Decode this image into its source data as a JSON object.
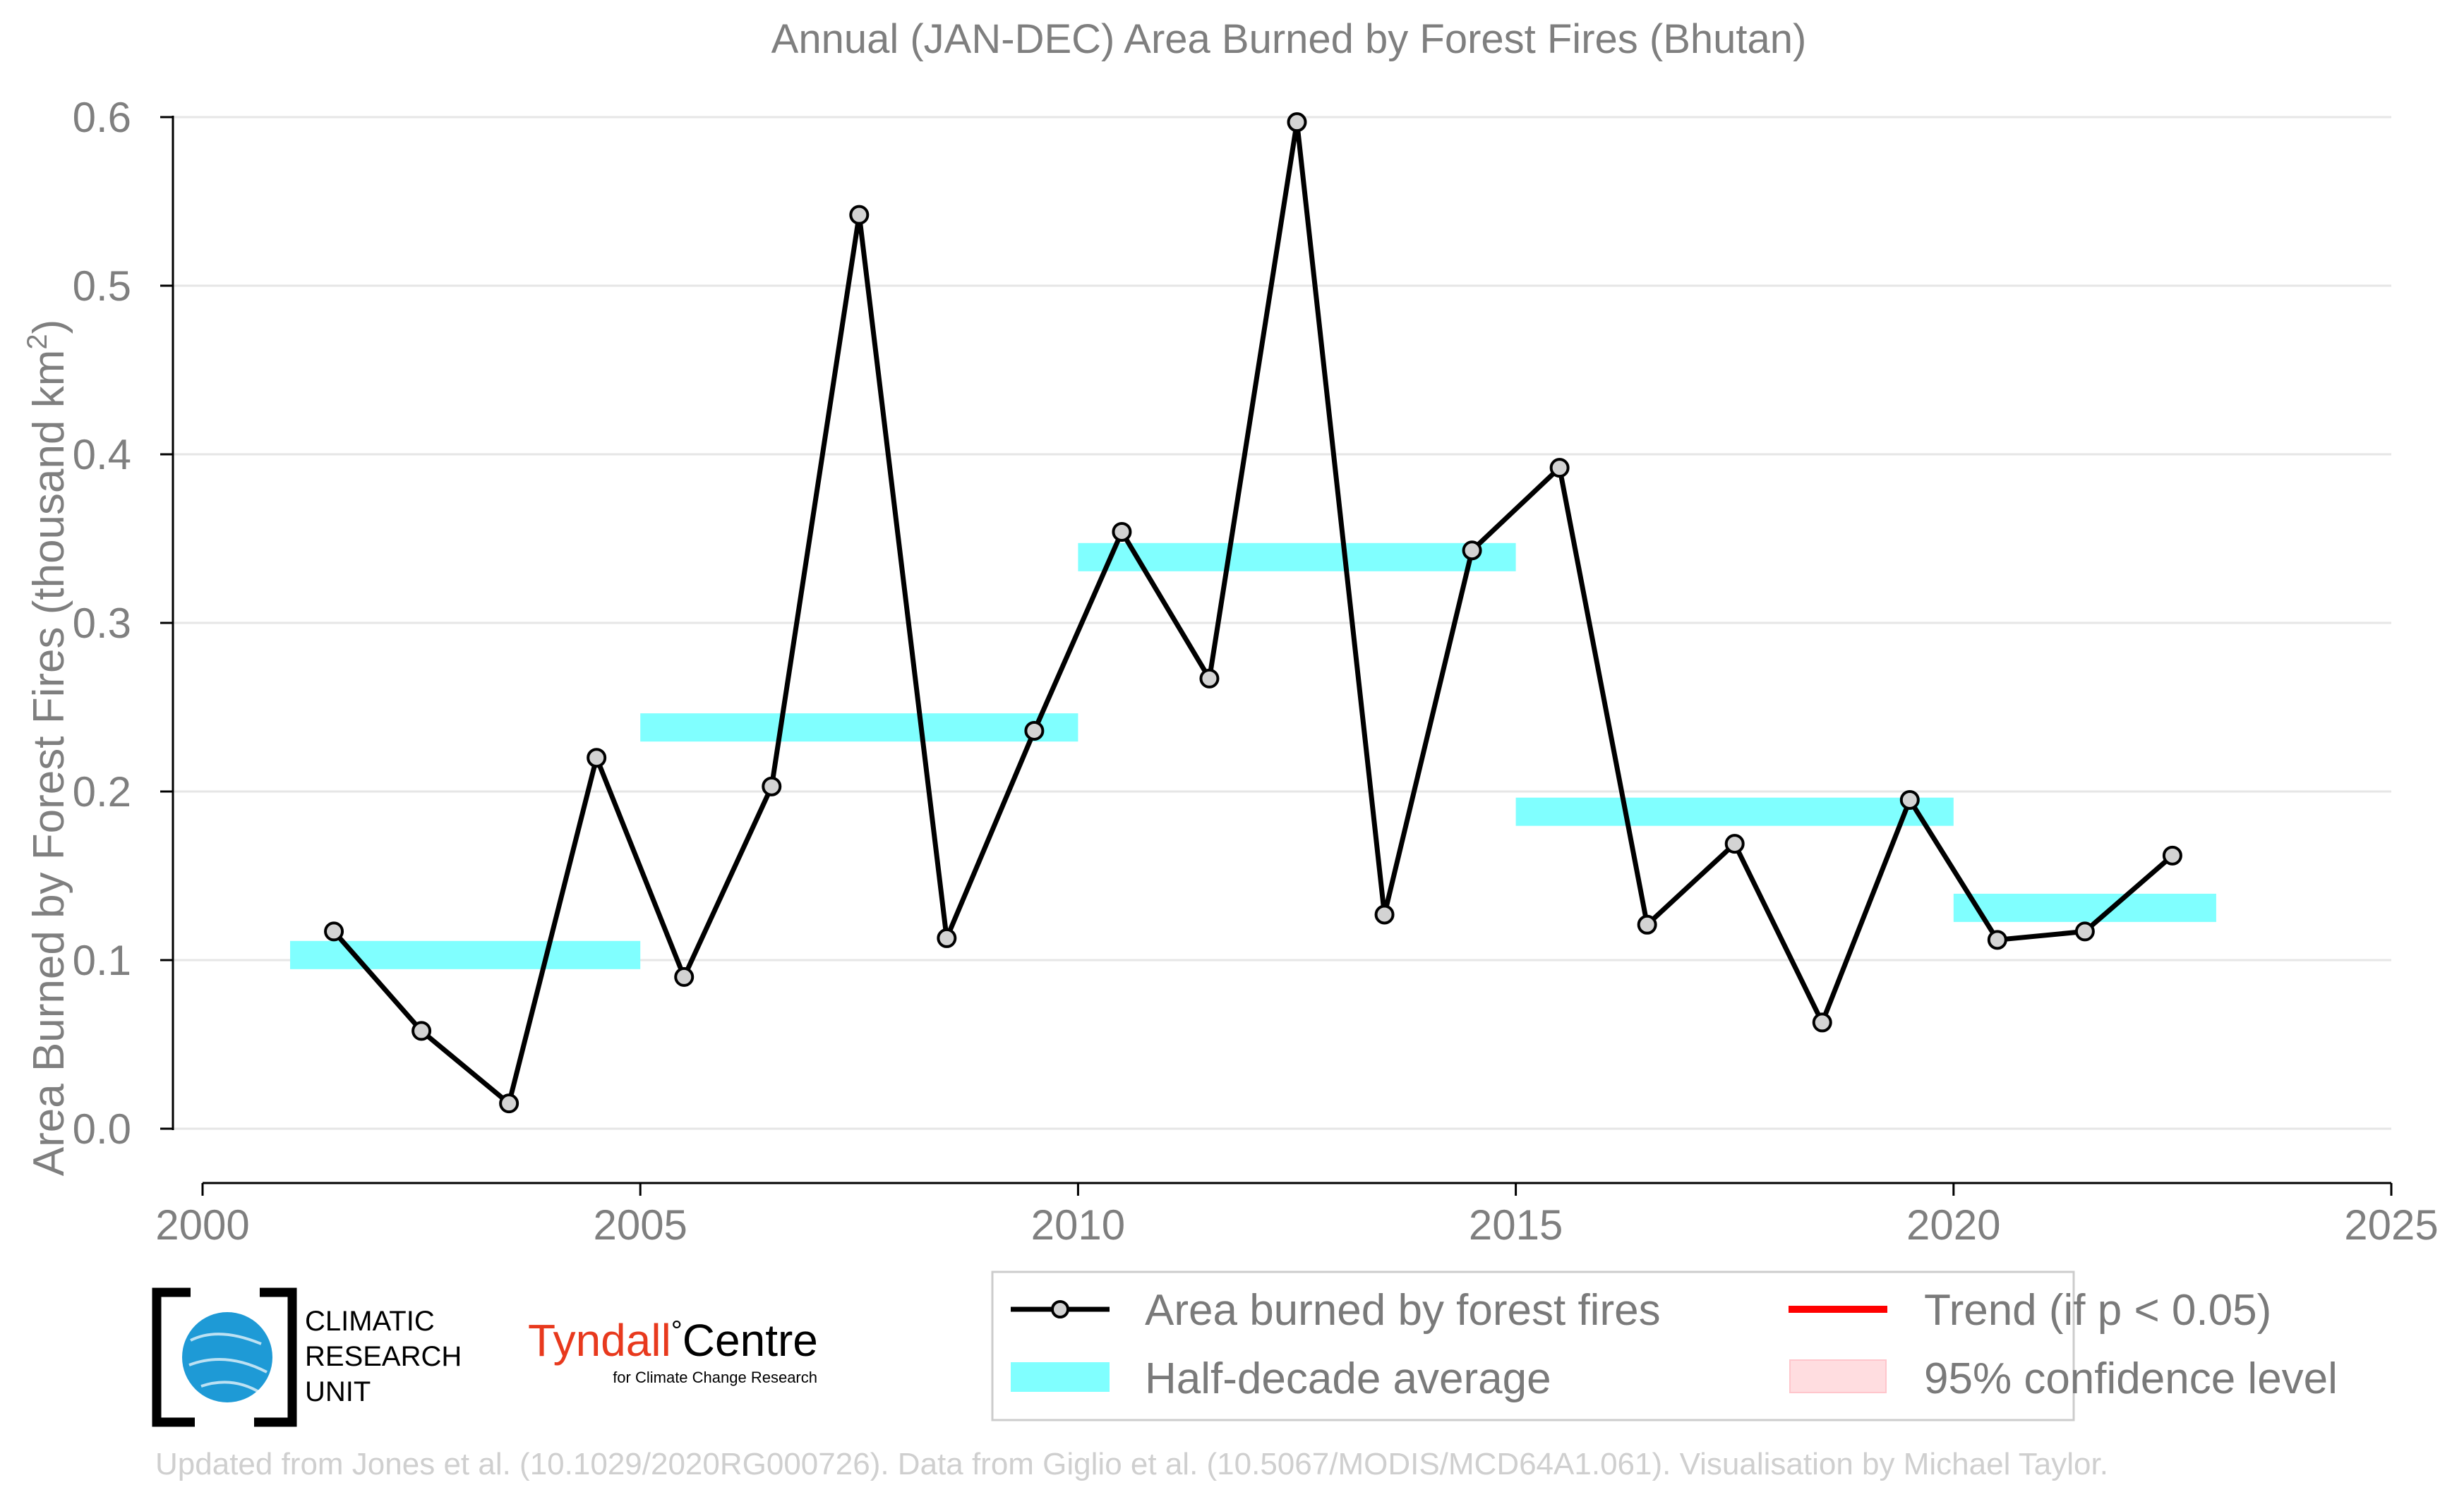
{
  "chart_data": {
    "type": "line",
    "title": "Annual (JAN-DEC) Area Burned by Forest Fires (Bhutan)",
    "ylabel_main": "Area Burned by Forest Fires (thousand km",
    "ylabel_sup": "2",
    "ylabel_close": ")",
    "xlabel": "",
    "xlim": [
      2000,
      2025
    ],
    "ylim": [
      0.0,
      0.6
    ],
    "xticks": [
      "2000",
      "2005",
      "2010",
      "2015",
      "2020",
      "2025"
    ],
    "yticks": [
      "0.0",
      "0.1",
      "0.2",
      "0.3",
      "0.4",
      "0.5",
      "0.6"
    ],
    "grid": "horizontal",
    "series": [
      {
        "name": "Area burned by forest fires",
        "color": "#000000",
        "marker_color": "#d3d3d3",
        "x": [
          2001.5,
          2002.5,
          2003.5,
          2004.5,
          2005.5,
          2006.5,
          2007.5,
          2008.5,
          2009.5,
          2010.5,
          2011.5,
          2012.5,
          2013.5,
          2014.5,
          2015.5,
          2016.5,
          2017.5,
          2018.5,
          2019.5,
          2020.5,
          2021.5,
          2022.5
        ],
        "y": [
          0.117,
          0.058,
          0.015,
          0.22,
          0.09,
          0.203,
          0.542,
          0.113,
          0.236,
          0.354,
          0.267,
          0.597,
          0.127,
          0.343,
          0.392,
          0.121,
          0.169,
          0.063,
          0.195,
          0.112,
          0.117,
          0.162
        ]
      }
    ],
    "half_decade_average": {
      "name": "Half-decade average",
      "color": "#80ffff",
      "segments": [
        {
          "x_start": 2001,
          "x_end": 2005,
          "y": 0.103
        },
        {
          "x_start": 2005,
          "x_end": 2010,
          "y": 0.238
        },
        {
          "x_start": 2010,
          "x_end": 2015,
          "y": 0.339
        },
        {
          "x_start": 2015,
          "x_end": 2020,
          "y": 0.188
        },
        {
          "x_start": 2020,
          "x_end": 2023,
          "y": 0.131
        }
      ]
    },
    "legend": {
      "placement": "bottom-right",
      "items": {
        "line": "Area burned by forest fires",
        "band": "Half-decade average",
        "trend": "Trend (if p < 0.05)",
        "confidence": "95% confidence level"
      },
      "trend_color": "#ff0000",
      "confidence_color": "#ffdde0"
    }
  },
  "logos": {
    "cru_lines": [
      "CLIMATIC",
      "RESEARCH",
      "UNIT"
    ],
    "tyndall_main": "Tyndall",
    "tyndall_degree": "°",
    "tyndall_centre": "Centre",
    "tyndall_sub": "for Climate Change Research",
    "tyndall_color": "#e8391d",
    "cru_globe_color": "#1e9ad6"
  },
  "footer": {
    "credit": "Updated from Jones et al. (10.1029/2020RG000726). Data from Giglio et al. (10.5067/MODIS/MCD64A1.061). Visualisation by Michael Taylor."
  }
}
